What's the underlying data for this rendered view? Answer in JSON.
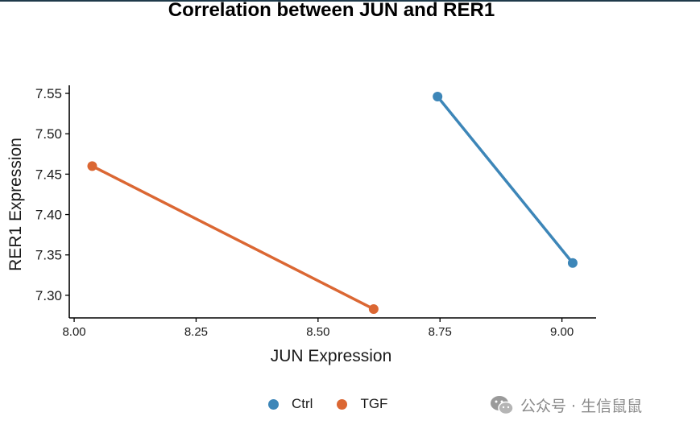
{
  "chart_data": {
    "type": "line",
    "title": "Correlation between JUN and RER1",
    "xlabel": "JUN Expression",
    "ylabel": "RER1 Expression",
    "xlim": [
      7.99,
      9.07
    ],
    "ylim": [
      7.272,
      7.56
    ],
    "xticks": [
      8.0,
      8.25,
      8.5,
      8.75,
      9.0
    ],
    "xtick_labels": [
      "8.00",
      "8.25",
      "8.50",
      "8.75",
      "9.00"
    ],
    "yticks": [
      7.3,
      7.35,
      7.4,
      7.45,
      7.5,
      7.55
    ],
    "ytick_labels": [
      "7.30",
      "7.35",
      "7.40",
      "7.45",
      "7.50",
      "7.55"
    ],
    "grid": false,
    "legend_position": "bottom",
    "series": [
      {
        "name": "Ctrl",
        "color": "#3d86b8",
        "x": [
          8.745,
          9.022
        ],
        "y": [
          7.546,
          7.34
        ]
      },
      {
        "name": "TGF",
        "color": "#db6733",
        "x": [
          8.037,
          8.614
        ],
        "y": [
          7.46,
          7.283
        ]
      }
    ]
  },
  "watermark": {
    "icon": "wechat-icon",
    "text": "公众号 · 生信鼠鼠"
  }
}
